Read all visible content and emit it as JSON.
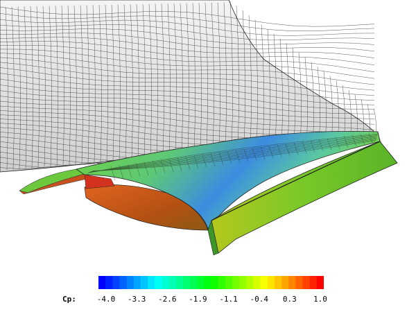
{
  "colorbar": {
    "label": "Cp:",
    "ticks": [
      "-4.0",
      "-3.3",
      "-2.6",
      "-1.9",
      "-1.1",
      "-0.4",
      "0.3",
      "1.0"
    ],
    "min": -4.0,
    "max": 1.0,
    "colors": [
      "#0000ff",
      "#00ffff",
      "#00ff00",
      "#ffff00",
      "#ff0000"
    ]
  },
  "colors": {
    "wake_mesh_fill": "#e6e6e6",
    "wake_mesh_line": "#222222",
    "surface_green": "#5fc832",
    "surface_orange": "#c85a14",
    "surface_red": "#d2321e",
    "surface_blue": "#3c78dc"
  }
}
